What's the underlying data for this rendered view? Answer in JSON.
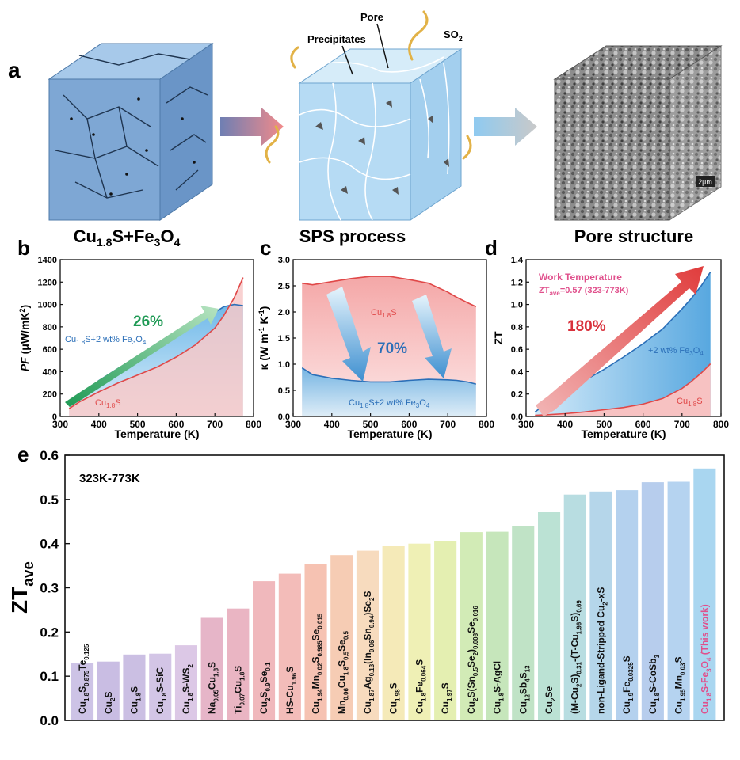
{
  "panel_a": {
    "letter": "a",
    "cube1_caption": "Cu1.8S+Fe3O4",
    "cube2_caption": "SPS process",
    "cube3_caption": "Pore structure",
    "label_precipitates": "Precipitates",
    "label_pore": "Pore",
    "label_so2": "SO2",
    "scale_bar": "2μm",
    "colors": {
      "cube_blue": "#7fa9d6",
      "cube_light": "#b9dcf2",
      "arrow_red": "#e88a8a",
      "arrow_blue": "#8ec7ea",
      "smoke": "#e2b247"
    }
  },
  "chart_data": [
    {
      "id": "b",
      "letter": "b",
      "type": "area",
      "xlabel": "Temperature (K)",
      "ylabel": "PF (μW/mK²)",
      "xlim": [
        300,
        800
      ],
      "ylim": [
        0,
        1400
      ],
      "xticks": [
        300,
        400,
        500,
        600,
        700,
        800
      ],
      "yticks": [
        0,
        200,
        400,
        600,
        800,
        1000,
        1200,
        1400
      ],
      "series": [
        {
          "name": "Cu1.8S+2 wt% Fe3O4",
          "color": "#2b6fb8",
          "x": [
            323,
            350,
            400,
            450,
            500,
            550,
            600,
            650,
            700,
            723,
            750,
            773
          ],
          "y": [
            100,
            190,
            320,
            430,
            530,
            620,
            720,
            830,
            930,
            980,
            1000,
            990
          ]
        },
        {
          "name": "Cu1.8S",
          "color": "#e04848",
          "x": [
            323,
            350,
            400,
            450,
            500,
            550,
            600,
            650,
            700,
            723,
            750,
            773
          ],
          "y": [
            70,
            130,
            220,
            300,
            370,
            440,
            530,
            640,
            790,
            900,
            1060,
            1240
          ]
        }
      ],
      "annotation": "26%",
      "label_blue": "Cu1.8S+2 wt% Fe3O4",
      "label_red": "Cu1.8S"
    },
    {
      "id": "c",
      "letter": "c",
      "type": "area",
      "xlabel": "Temperature (K)",
      "ylabel": "κ (W m⁻¹ K⁻¹)",
      "xlim": [
        300,
        800
      ],
      "ylim": [
        0,
        3.0
      ],
      "xticks": [
        300,
        400,
        500,
        600,
        700,
        800
      ],
      "yticks": [
        0,
        0.5,
        1.0,
        1.5,
        2.0,
        2.5,
        3.0
      ],
      "series": [
        {
          "name": "Cu1.8S",
          "color": "#e04848",
          "x": [
            323,
            350,
            400,
            450,
            500,
            550,
            600,
            650,
            700,
            723,
            750,
            773
          ],
          "y": [
            2.55,
            2.52,
            2.58,
            2.64,
            2.68,
            2.68,
            2.62,
            2.55,
            2.38,
            2.28,
            2.18,
            2.1
          ]
        },
        {
          "name": "Cu1.8S+2 wt% Fe3O4",
          "color": "#2b6fb8",
          "x": [
            323,
            350,
            400,
            450,
            500,
            550,
            600,
            650,
            700,
            723,
            750,
            773
          ],
          "y": [
            0.93,
            0.8,
            0.73,
            0.69,
            0.66,
            0.66,
            0.69,
            0.71,
            0.7,
            0.69,
            0.66,
            0.62
          ]
        }
      ],
      "annotation": "70%",
      "label_blue": "Cu1.8S+2 wt% Fe3O4",
      "label_red": "Cu1.8S"
    },
    {
      "id": "d",
      "letter": "d",
      "type": "area",
      "xlabel": "Temperature (K)",
      "ylabel": "ZT",
      "xlim": [
        300,
        800
      ],
      "ylim": [
        0,
        1.4
      ],
      "xticks": [
        300,
        400,
        500,
        600,
        700,
        800
      ],
      "yticks": [
        0.0,
        0.2,
        0.4,
        0.6,
        0.8,
        1.0,
        1.2,
        1.4
      ],
      "series": [
        {
          "name": "+2 wt% Fe3O4",
          "color": "#2b6fb8",
          "x": [
            323,
            350,
            400,
            450,
            500,
            550,
            600,
            650,
            700,
            723,
            750,
            773
          ],
          "y": [
            0.04,
            0.11,
            0.23,
            0.32,
            0.42,
            0.53,
            0.65,
            0.78,
            0.96,
            1.05,
            1.17,
            1.29
          ]
        },
        {
          "name": "Cu1.8S",
          "color": "#e04848",
          "x": [
            323,
            350,
            400,
            450,
            500,
            550,
            600,
            650,
            700,
            723,
            750,
            773
          ],
          "y": [
            0.01,
            0.015,
            0.025,
            0.04,
            0.06,
            0.08,
            0.11,
            0.16,
            0.25,
            0.31,
            0.39,
            0.47
          ]
        }
      ],
      "annotation": "180%",
      "work_temp_line1": "Work Temperature",
      "work_temp_line2": "ZTave=0.57 (323-773K)",
      "label_blue": "+2 wt% Fe3O4",
      "label_red": "Cu1.8S"
    },
    {
      "id": "e",
      "letter": "e",
      "type": "bar",
      "ylabel": "ZTave",
      "ylim": [
        0,
        0.6
      ],
      "yticks": [
        0.0,
        0.1,
        0.2,
        0.3,
        0.4,
        0.5,
        0.6
      ],
      "range_label": "323K-773K",
      "categories": [
        "Cu1.8S0.875Te0.125",
        "Cu2S",
        "Cu1.8S",
        "Cu1.8S-SiC",
        "Cu1.8S-WS2",
        "Na0.05Cu1.8S",
        "Ti0.07Cu1.8S",
        "Cu2S0.9Se0.1",
        "HS-Cu1.96S",
        "Cu1.94Mn0.02S0.985Se0.015",
        "Mn0.06Cu1.8S0.5Se0.5",
        "Cu1.87Ag0.13(In0.06Sn0.94)Se2S",
        "Cu1.98S",
        "Cu1.8Fe0.064S",
        "Cu1.97S",
        "Cu2S(Sn0.5Se2)0.008Se0.016",
        "Cu1.8S-AgCl",
        "Cu12Sb4S13",
        "Cu2Se",
        "(M-Cu2S)0.31-(T-Cu1.96S)0.69",
        "non-Ligand-Stripped Cu2-xS",
        "Cu1.9Fe0.0325S",
        "Cu1.8S-CoSb3",
        "Cu1.95Mn0.03S",
        "Cu1.8S-Fe3O4 (This work)"
      ],
      "values": [
        0.13,
        0.133,
        0.149,
        0.151,
        0.17,
        0.232,
        0.253,
        0.315,
        0.332,
        0.353,
        0.374,
        0.384,
        0.394,
        0.4,
        0.406,
        0.426,
        0.427,
        0.44,
        0.471,
        0.511,
        0.518,
        0.521,
        0.539,
        0.54,
        0.57
      ],
      "colors": [
        "#cdc3e6",
        "#c9bde3",
        "#cbbfe3",
        "#d3c5e6",
        "#dcc8e6",
        "#e6b5c8",
        "#eab5c3",
        "#f0b8bc",
        "#f3bcb9",
        "#f6c2b2",
        "#f6ccb4",
        "#f7dbbe",
        "#f5eab8",
        "#eff0b5",
        "#e4efb1",
        "#d2ebb6",
        "#c6e6bb",
        "#c0e3c6",
        "#bbe2d4",
        "#b8dde1",
        "#b5d6ea",
        "#b4d1ee",
        "#b7cded",
        "#b5d3f0",
        "#a9d6f0"
      ],
      "highlight_color": "#e0508c"
    }
  ]
}
